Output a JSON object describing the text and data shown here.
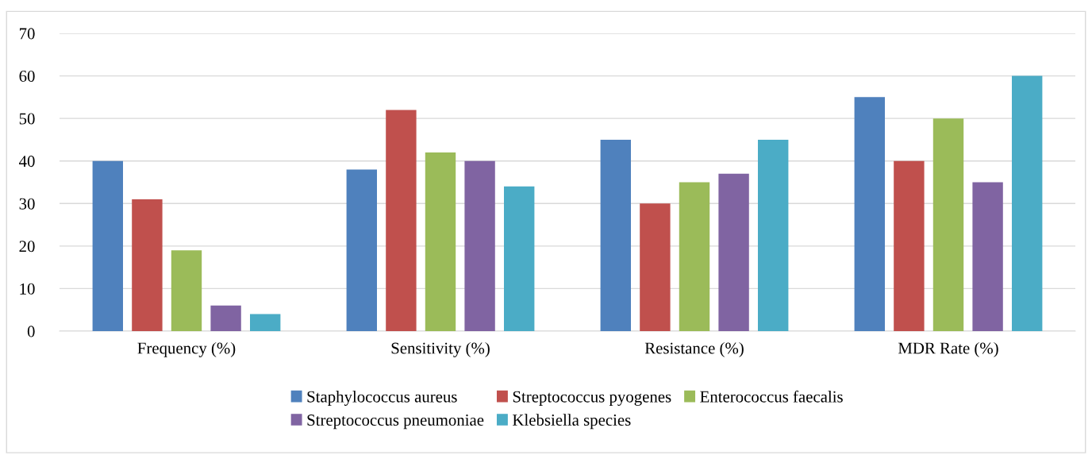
{
  "chart_data": {
    "type": "bar",
    "categories": [
      "Frequency (%)",
      "Sensitivity (%)",
      "Resistance (%)",
      "MDR Rate (%)"
    ],
    "series": [
      {
        "name": "Staphylococcus aureus",
        "color": "#4f81bd",
        "values": [
          40,
          38,
          45,
          55
        ]
      },
      {
        "name": "Streptococcus pyogenes",
        "color": "#c0504d",
        "values": [
          31,
          52,
          30,
          40
        ]
      },
      {
        "name": "Enterococcus faecalis",
        "color": "#9bbb59",
        "values": [
          19,
          42,
          35,
          50
        ]
      },
      {
        "name": "Streptococcus pneumoniae",
        "color": "#8064a2",
        "values": [
          6,
          40,
          37,
          35
        ]
      },
      {
        "name": "Klebsiella species",
        "color": "#4bacc6",
        "values": [
          4,
          34,
          45,
          60
        ]
      }
    ],
    "ylim": [
      0,
      70
    ],
    "yticks": [
      0,
      10,
      20,
      30,
      40,
      50,
      60,
      70
    ],
    "grid": "y",
    "legend": "bottom"
  }
}
